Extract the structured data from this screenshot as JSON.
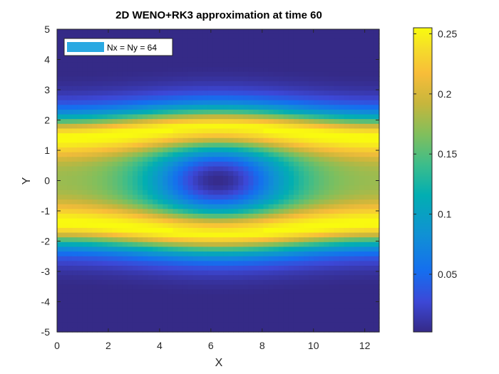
{
  "chart_data": {
    "type": "heatmap",
    "title": "2D WENO+RK3 approximation at time 60",
    "xlabel": "X",
    "ylabel": "Y",
    "xlim": [
      0,
      12.566
    ],
    "ylim": [
      -5,
      5
    ],
    "grid": [
      64,
      64
    ],
    "x_ticks": [
      "0",
      "2",
      "4",
      "6",
      "8",
      "10",
      "12"
    ],
    "y_ticks": [
      "5",
      "4",
      "3",
      "2",
      "1",
      "0",
      "-1",
      "-2",
      "-3",
      "-4",
      "-5"
    ],
    "colorbar": {
      "range": [
        0.002,
        0.255
      ],
      "ticks": [
        "0.25",
        "0.2",
        "0.15",
        "0.1",
        "0.05"
      ],
      "tick_values": [
        0.25,
        0.2,
        0.15,
        0.1,
        0.05
      ],
      "colormap": "parula"
    },
    "legend": {
      "label": "Nx = Ny = 64",
      "color": "#2aa9e2",
      "placement": "top-left"
    },
    "field_profile": {
      "description_values": "density ~0.25 along bands near y=±1.5, minimum ~0.003 at center (x≈6.3, y=0), ~0.003 at |y|≥4.5",
      "center_min": 0.003,
      "band_peak": 0.255,
      "ring_value": 0.12
    }
  }
}
